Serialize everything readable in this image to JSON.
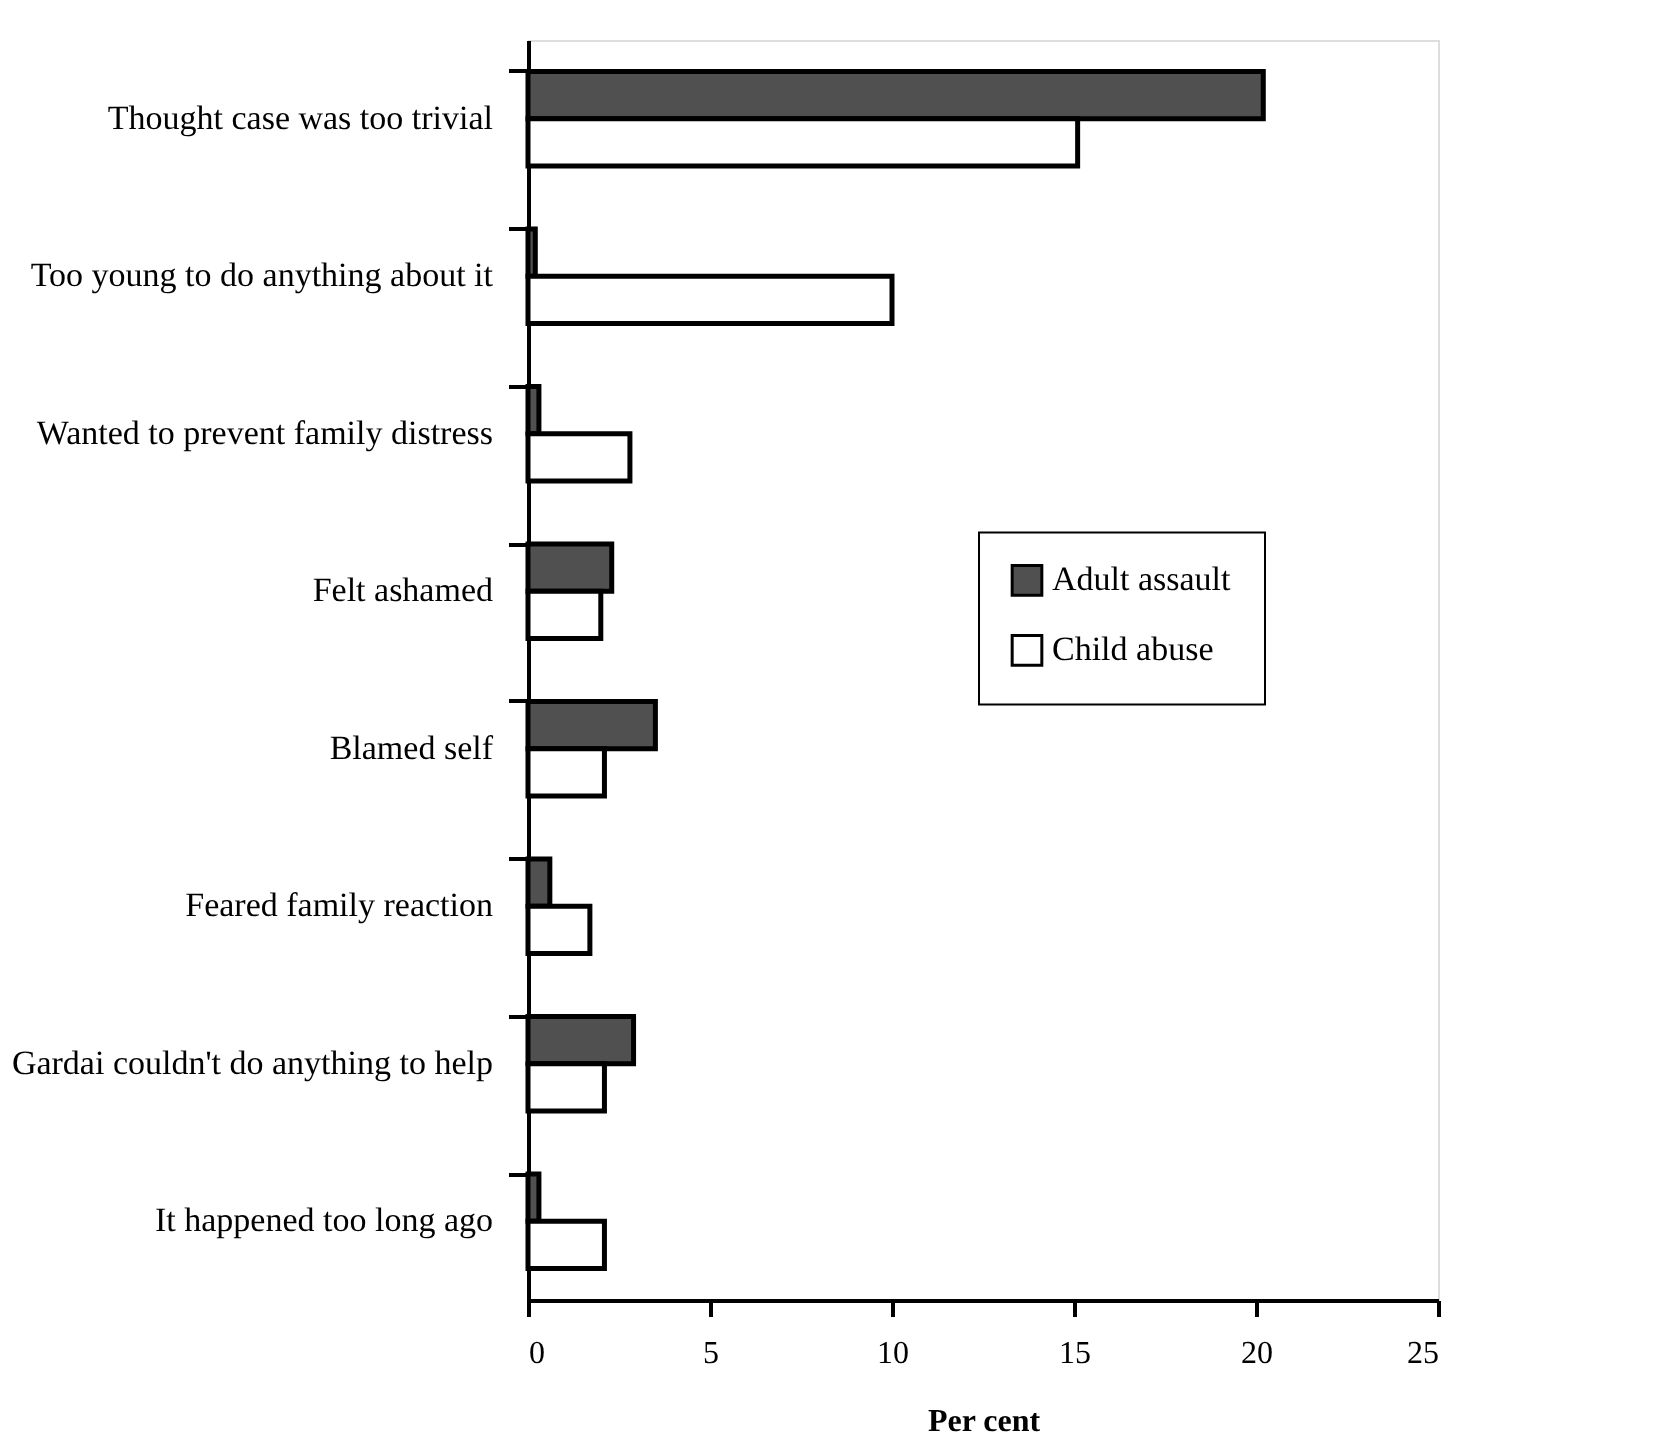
{
  "chart_data": {
    "type": "bar",
    "orientation": "horizontal",
    "xlabel": "Per cent",
    "categories": [
      "Thought case was too trivial",
      "Too young to do anything about it",
      "Wanted to prevent family distress",
      "Felt ashamed",
      "Blamed self",
      "Feared family reaction",
      "Gardai couldn't do anything to help",
      "It happened too long ago"
    ],
    "series": [
      {
        "name": "Adult assault",
        "color": "#505050",
        "values": [
          20.2,
          0.2,
          0.3,
          2.3,
          3.5,
          0.6,
          2.9,
          0.3
        ]
      },
      {
        "name": "Child abuse",
        "color": "#ffffff",
        "values": [
          15.1,
          10.0,
          2.8,
          2.0,
          2.1,
          1.7,
          2.1,
          2.1
        ]
      }
    ],
    "xlim": [
      0,
      25
    ],
    "xticks": [
      0,
      5,
      10,
      15,
      20,
      25
    ],
    "grid": false,
    "legend": "right"
  }
}
